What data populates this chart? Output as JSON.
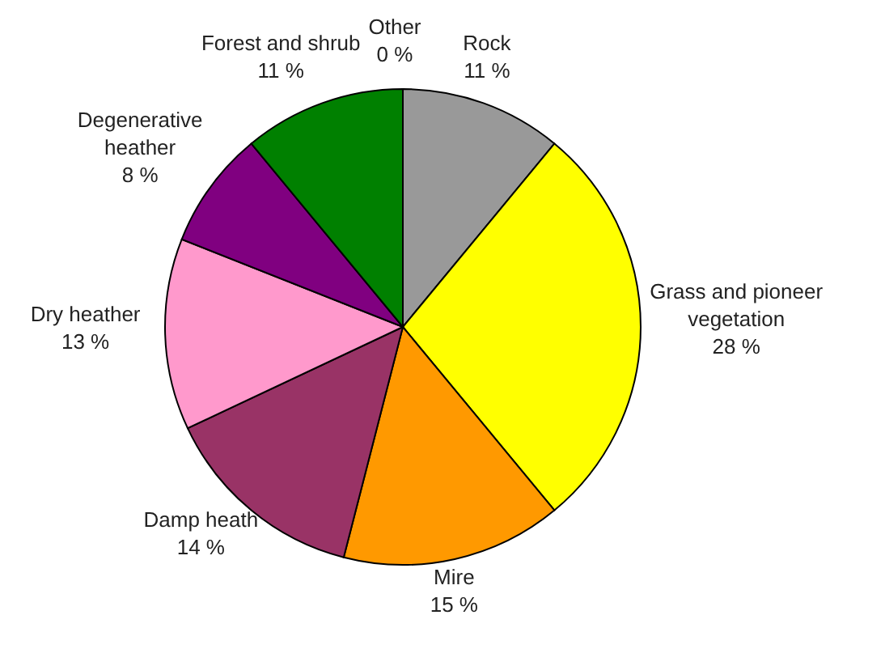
{
  "chart_data": {
    "type": "pie",
    "categories": [
      "Other",
      "Rock",
      "Grass and pioneer vegetation",
      "Mire",
      "Damp heath",
      "Dry heather",
      "Degenerative heather",
      "Forest and shrub"
    ],
    "values": [
      0,
      11,
      28,
      15,
      14,
      13,
      8,
      11
    ],
    "colors": [
      "#ffffff",
      "#999999",
      "#ffff00",
      "#ff9900",
      "#993366",
      "#ff99cc",
      "#800080",
      "#008000"
    ],
    "value_labels": [
      "0 %",
      "11 %",
      "28 %",
      "15 %",
      "14 %",
      "13 %",
      "8 %",
      "11 %"
    ],
    "legend": false
  }
}
